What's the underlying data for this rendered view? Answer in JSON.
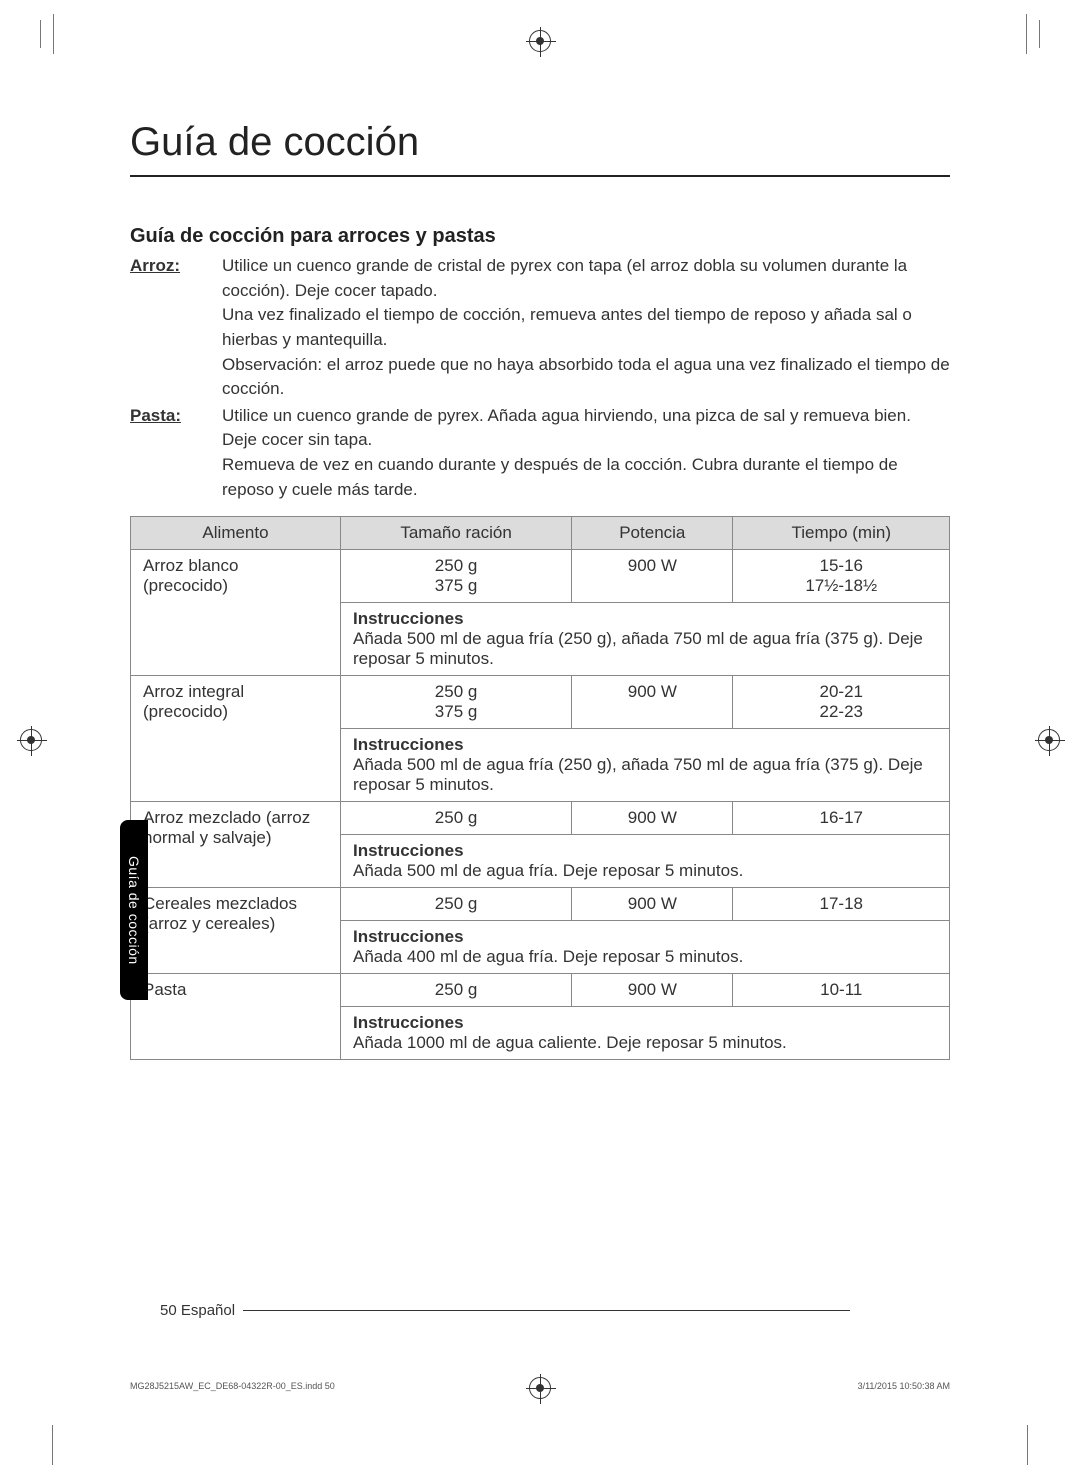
{
  "title": "Guía de cocción",
  "subtitle": "Guía de cocción para arroces y pastas",
  "intro": {
    "arroz": {
      "label": "Arroz:",
      "p1": "Utilice un cuenco grande de cristal de pyrex con tapa (el arroz dobla su volumen durante la cocción). Deje cocer tapado.",
      "p2": "Una vez finalizado el tiempo de cocción, remueva antes del tiempo de reposo y añada sal o hierbas y mantequilla.",
      "p3": "Observación: el arroz puede que no haya absorbido toda el agua una vez finalizado el tiempo de cocción."
    },
    "pasta": {
      "label": "Pasta:",
      "p1": "Utilice un cuenco grande de pyrex. Añada agua hirviendo, una pizca de sal y remueva bien. Deje cocer sin tapa.",
      "p2": "Remueva de vez en cuando durante y después de la cocción. Cubra durante el tiempo de reposo y cuele más tarde."
    }
  },
  "table": {
    "headers": {
      "food": "Alimento",
      "size": "Tamaño ración",
      "power": "Potencia",
      "time": "Tiempo (min)"
    },
    "instr_label": "Instrucciones",
    "rows": [
      {
        "food": "Arroz blanco (precocido)",
        "size": "250 g\n375 g",
        "power": "900 W",
        "time": "15-16\n17½-18½",
        "instr": "Añada 500 ml de agua fría (250 g), añada 750 ml de agua fría (375 g). Deje reposar 5 minutos."
      },
      {
        "food": "Arroz integral (precocido)",
        "size": "250 g\n375 g",
        "power": "900 W",
        "time": "20-21\n22-23",
        "instr": "Añada 500 ml de agua fría (250 g), añada 750 ml de agua fría (375 g). Deje reposar 5 minutos."
      },
      {
        "food": "Arroz mezclado (arroz normal y salvaje)",
        "size": "250 g",
        "power": "900 W",
        "time": "16-17",
        "instr": "Añada 500 ml de agua fría. Deje reposar 5 minutos."
      },
      {
        "food": "Cereales mezclados (arroz y cereales)",
        "size": "250 g",
        "power": "900 W",
        "time": "17-18",
        "instr": "Añada 400 ml de agua fría. Deje reposar 5 minutos."
      },
      {
        "food": "Pasta",
        "size": "250 g",
        "power": "900 W",
        "time": "10-11",
        "instr": "Añada 1000 ml de agua caliente. Deje reposar 5 minutos."
      }
    ]
  },
  "side_tab": "Guía de cocción",
  "footer": {
    "page": "50",
    "lang": "Español"
  },
  "print_meta": {
    "left": "MG28J5215AW_EC_DE68-04322R-00_ES.indd   50",
    "right": "3/11/2015   10:50:38 AM"
  },
  "colors": {
    "header_bg": "#dcdcdc",
    "border": "#888888",
    "text": "#333333",
    "tab_bg": "#000000"
  }
}
